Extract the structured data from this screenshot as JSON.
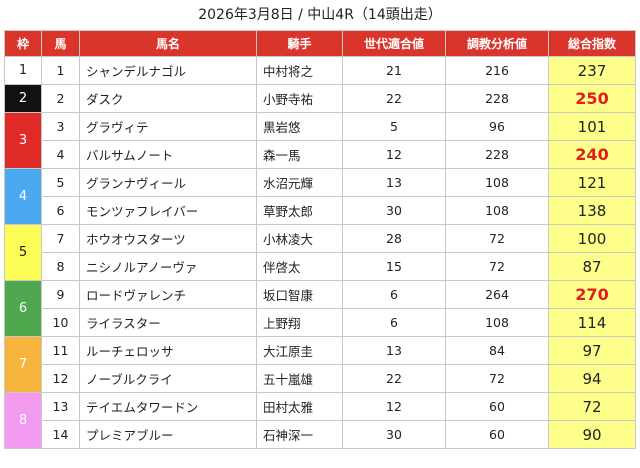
{
  "title": "2026年3月8日 / 中山4R（14頭出走）",
  "headers": [
    "枠",
    "馬",
    "馬名",
    "騎手",
    "世代適合値",
    "調教分析値",
    "総合指数"
  ],
  "colors": {
    "header_bg": "#d9352b",
    "score_bg": "#fefe8a",
    "hot_score": "#e02020"
  },
  "waku": [
    {
      "label": "1",
      "bg": "#ffffff",
      "fg": "#222222"
    },
    {
      "label": "2",
      "bg": "#111111",
      "fg": "#ffffff"
    },
    {
      "label": "3",
      "bg": "#e02a28",
      "fg": "#ffffff"
    },
    {
      "label": "4",
      "bg": "#49a8ee",
      "fg": "#ffffff"
    },
    {
      "label": "5",
      "bg": "#fbfc55",
      "fg": "#222222"
    },
    {
      "label": "6",
      "bg": "#4fa84e",
      "fg": "#ffffff"
    },
    {
      "label": "7",
      "bg": "#f7b43c",
      "fg": "#ffffff"
    },
    {
      "label": "8",
      "bg": "#f19af0",
      "fg": "#ffffff"
    }
  ],
  "rows": [
    {
      "waku": 1,
      "umaban": "1",
      "name": "シャンデルナゴル",
      "jockey": "中村将之",
      "sedai": "21",
      "chokyo": "216",
      "sogo": "237",
      "hot": false
    },
    {
      "waku": 2,
      "umaban": "2",
      "name": "ダスク",
      "jockey": "小野寺祐",
      "sedai": "22",
      "chokyo": "228",
      "sogo": "250",
      "hot": true
    },
    {
      "waku": 3,
      "umaban": "3",
      "name": "グラヴィテ",
      "jockey": "黒岩悠",
      "sedai": "5",
      "chokyo": "96",
      "sogo": "101",
      "hot": false
    },
    {
      "waku": 3,
      "umaban": "4",
      "name": "バルサムノート",
      "jockey": "森一馬",
      "sedai": "12",
      "chokyo": "228",
      "sogo": "240",
      "hot": true
    },
    {
      "waku": 4,
      "umaban": "5",
      "name": "グランナヴィール",
      "jockey": "水沼元輝",
      "sedai": "13",
      "chokyo": "108",
      "sogo": "121",
      "hot": false
    },
    {
      "waku": 4,
      "umaban": "6",
      "name": "モンツァフレイバー",
      "jockey": "草野太郎",
      "sedai": "30",
      "chokyo": "108",
      "sogo": "138",
      "hot": false
    },
    {
      "waku": 5,
      "umaban": "7",
      "name": "ホウオウスターツ",
      "jockey": "小林凌大",
      "sedai": "28",
      "chokyo": "72",
      "sogo": "100",
      "hot": false
    },
    {
      "waku": 5,
      "umaban": "8",
      "name": "ニシノルアノーヴァ",
      "jockey": "伴啓太",
      "sedai": "15",
      "chokyo": "72",
      "sogo": "87",
      "hot": false
    },
    {
      "waku": 6,
      "umaban": "9",
      "name": "ロードヴァレンチ",
      "jockey": "坂口智康",
      "sedai": "6",
      "chokyo": "264",
      "sogo": "270",
      "hot": true
    },
    {
      "waku": 6,
      "umaban": "10",
      "name": "ライラスター",
      "jockey": "上野翔",
      "sedai": "6",
      "chokyo": "108",
      "sogo": "114",
      "hot": false
    },
    {
      "waku": 7,
      "umaban": "11",
      "name": "ルーチェロッサ",
      "jockey": "大江原圭",
      "sedai": "13",
      "chokyo": "84",
      "sogo": "97",
      "hot": false
    },
    {
      "waku": 7,
      "umaban": "12",
      "name": "ノーブルクライ",
      "jockey": "五十嵐雄",
      "sedai": "22",
      "chokyo": "72",
      "sogo": "94",
      "hot": false
    },
    {
      "waku": 8,
      "umaban": "13",
      "name": "テイエムタワードン",
      "jockey": "田村太雅",
      "sedai": "12",
      "chokyo": "60",
      "sogo": "72",
      "hot": false
    },
    {
      "waku": 8,
      "umaban": "14",
      "name": "プレミアブルー",
      "jockey": "石神深一",
      "sedai": "30",
      "chokyo": "60",
      "sogo": "90",
      "hot": false
    }
  ]
}
